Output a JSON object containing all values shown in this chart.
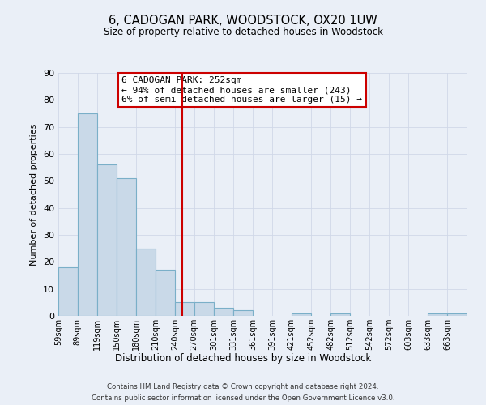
{
  "title": "6, CADOGAN PARK, WOODSTOCK, OX20 1UW",
  "subtitle": "Size of property relative to detached houses in Woodstock",
  "xlabel": "Distribution of detached houses by size in Woodstock",
  "ylabel": "Number of detached properties",
  "bin_labels": [
    "59sqm",
    "89sqm",
    "119sqm",
    "150sqm",
    "180sqm",
    "210sqm",
    "240sqm",
    "270sqm",
    "301sqm",
    "331sqm",
    "361sqm",
    "391sqm",
    "421sqm",
    "452sqm",
    "482sqm",
    "512sqm",
    "542sqm",
    "572sqm",
    "603sqm",
    "633sqm",
    "663sqm"
  ],
  "bin_edges": [
    59,
    89,
    119,
    150,
    180,
    210,
    240,
    270,
    301,
    331,
    361,
    391,
    421,
    452,
    482,
    512,
    542,
    572,
    603,
    633,
    663,
    693
  ],
  "bar_heights": [
    18,
    75,
    56,
    51,
    25,
    17,
    5,
    5,
    3,
    2,
    0,
    0,
    1,
    0,
    1,
    0,
    0,
    0,
    0,
    1,
    1
  ],
  "bar_color": "#c9d9e8",
  "bar_edge_color": "#7aafc8",
  "vline_x": 252,
  "vline_color": "#cc0000",
  "annotation_box_text": "6 CADOGAN PARK: 252sqm\n← 94% of detached houses are smaller (243)\n6% of semi-detached houses are larger (15) →",
  "annotation_box_color": "#cc0000",
  "annotation_box_bg": "#ffffff",
  "ylim": [
    0,
    90
  ],
  "yticks": [
    0,
    10,
    20,
    30,
    40,
    50,
    60,
    70,
    80,
    90
  ],
  "grid_color": "#d0d8e8",
  "background_color": "#eaeff7",
  "footer_line1": "Contains HM Land Registry data © Crown copyright and database right 2024.",
  "footer_line2": "Contains public sector information licensed under the Open Government Licence v3.0."
}
